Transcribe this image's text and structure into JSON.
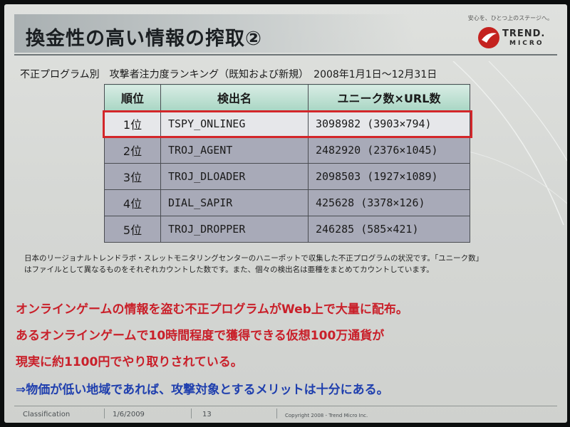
{
  "header": {
    "title": "換金性の高い情報の搾取②",
    "tagline": "安心を、ひとつ上のステージへ。",
    "logo_top": "TREND.",
    "logo_bottom": "MICRO"
  },
  "subtitle": "不正プログラム別　攻撃者注力度ランキング（既知および新規）　2008年1月1日～12月31日",
  "table": {
    "headers": [
      "順位",
      "検出名",
      "ユニーク数×URL数"
    ],
    "rows": [
      {
        "rank": "1位",
        "name": "TSPY_ONLINEG",
        "value": "3098982  (3903×794)"
      },
      {
        "rank": "2位",
        "name": "TROJ_AGENT",
        "value": "2482920  (2376×1045)"
      },
      {
        "rank": "3位",
        "name": "TROJ_DLOADER",
        "value": "2098503  (1927×1089)"
      },
      {
        "rank": "4位",
        "name": "DIAL_SAPIR",
        "value": "425628  (3378×126)"
      },
      {
        "rank": "5位",
        "name": "TROJ_DROPPER",
        "value": "246285  (585×421)"
      }
    ]
  },
  "note": {
    "line1": "日本のリージョナルトレンドラボ・スレットモニタリングセンターのハニーポットで収集した不正プログラムの状況です。「ユニーク数」",
    "line2": "はファイルとして異なるものをそれぞれカウントした数です。また、個々の検出名は亜種をまとめてカウントしています。"
  },
  "messages": {
    "line1": "オンラインゲームの情報を盗む不正プログラムがWeb上で大量に配布。",
    "line2": "あるオンラインゲームで10時間程度で獲得できる仮想100万通貨が",
    "line3": "現実に約1100円でやり取りされている。",
    "line4": "⇒物価が低い地域であれば、攻撃対象とするメリットは十分にある。"
  },
  "footer": {
    "classification": "Classification",
    "date": "1/6/2009",
    "page": "13",
    "copyright": "Copyright 2008 - Trend Micro Inc."
  },
  "colors": {
    "accent_red": "#c9202a",
    "accent_blue": "#1f3fae",
    "highlight_border": "#d3262a",
    "header_fill": "#a9d6c4",
    "row_fill": "#a8aab8"
  }
}
